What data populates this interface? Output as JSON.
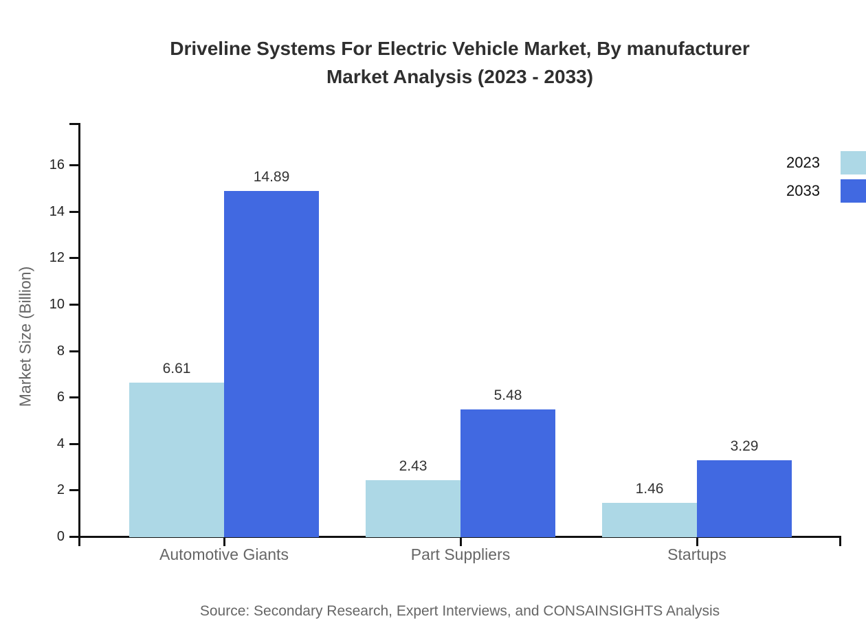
{
  "title": {
    "line1": "Driveline Systems For Electric Vehicle Market, By manufacturer",
    "line2": "Market Analysis (2023 - 2033)"
  },
  "source": "Source: Secondary Research, Expert Interviews, and CONSAINSIGHTS Analysis",
  "chart_data": {
    "type": "bar",
    "categories": [
      "Automotive Giants",
      "Part Suppliers",
      "Startups"
    ],
    "series": [
      {
        "name": "2023",
        "color": "#ADD8E6",
        "values": [
          6.61,
          2.43,
          1.46
        ]
      },
      {
        "name": "2033",
        "color": "#4169E1",
        "values": [
          14.89,
          5.48,
          3.29
        ]
      }
    ],
    "title": "Driveline Systems For Electric Vehicle Market, By manufacturer Market Analysis (2023 - 2033)",
    "xlabel": "",
    "ylabel": "Market Size (Billion)",
    "ylim": [
      0,
      17.8
    ],
    "yticks": [
      0,
      2,
      4,
      6,
      8,
      10,
      12,
      14,
      16
    ],
    "grid": false,
    "legend_position": "top-right",
    "value_labels": true
  }
}
